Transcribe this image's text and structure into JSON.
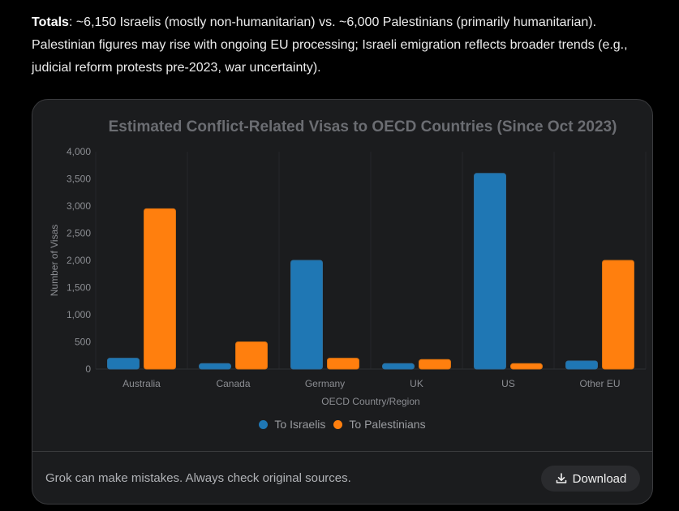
{
  "summary": {
    "lead": "Totals",
    "text": ": ~6,150 Israelis (mostly non-humanitarian) vs. ~6,000 Palestinians (primarily humanitarian). Palestinian figures may rise with ongoing EU processing; Israeli emigration reflects broader trends (e.g., judicial reform protests pre-2023, war uncertainty)."
  },
  "footer": {
    "disclaimer": "Grok can make mistakes. Always check original sources.",
    "download_label": "Download"
  },
  "colors": {
    "israelis": "#1f77b4",
    "palestinians": "#ff7f0e"
  },
  "chart_data": {
    "type": "bar",
    "title": "Estimated Conflict-Related Visas to OECD Countries (Since Oct 2023)",
    "xlabel": "OECD Country/Region",
    "ylabel": "Number of Visas",
    "categories": [
      "Australia",
      "Canada",
      "Germany",
      "UK",
      "US",
      "Other EU"
    ],
    "series": [
      {
        "name": "To Israelis",
        "values": [
          200,
          100,
          2000,
          100,
          3600,
          150
        ]
      },
      {
        "name": "To Palestinians",
        "values": [
          2950,
          500,
          200,
          175,
          100,
          2000
        ]
      }
    ],
    "ylim": [
      0,
      4000
    ],
    "yticks": [
      "0",
      "500",
      "1,000",
      "1,500",
      "2,000",
      "2,500",
      "3,000",
      "3,500",
      "4,000"
    ],
    "grid": "vertical",
    "legend": "bottom-center"
  }
}
